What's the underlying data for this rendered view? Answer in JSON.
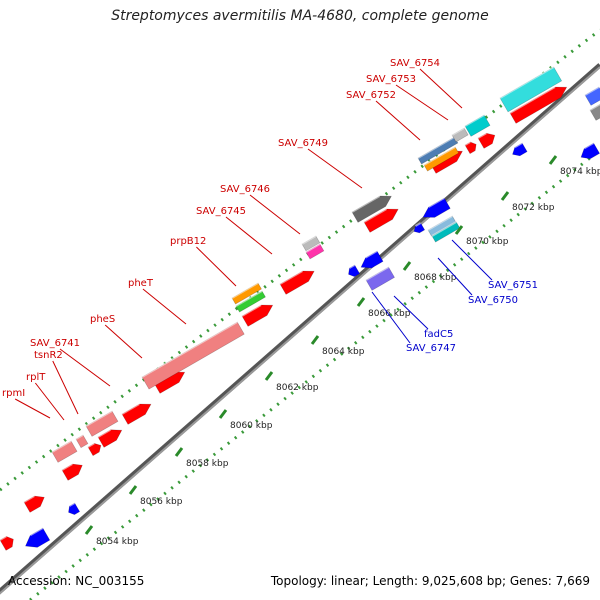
{
  "title": "Streptomyces avermitilis MA-4680, complete genome",
  "footer": {
    "accession": "Accession: NC_003155",
    "summary": "Topology: linear; Length: 9,025,608 bp; Genes: 7,669"
  },
  "colors": {
    "forward": "#ff0000",
    "reverse": "#0000ff",
    "rna": "#f08080",
    "tick": "#3a9a3a",
    "backbone": "#777777",
    "label_top": "#cc0000",
    "label_bottom": "#0000cc"
  },
  "kbp_ticks": [
    "8054 kbp",
    "8056 kbp",
    "8058 kbp",
    "8060 kbp",
    "8062 kbp",
    "8064 kbp",
    "8066 kbp",
    "8068 kbp",
    "8070 kbp",
    "8072 kbp",
    "8074 kbp"
  ],
  "top_labels": [
    "rpmI",
    "rplT",
    "tsnR2",
    "SAV_6741",
    "pheS",
    "pheT",
    "prpB12",
    "SAV_6745",
    "SAV_6746",
    "SAV_6749",
    "SAV_6752",
    "SAV_6753",
    "SAV_6754"
  ],
  "bottom_labels": [
    "SAV_6747",
    "fadC5",
    "SAV_6750",
    "SAV_6751"
  ]
}
